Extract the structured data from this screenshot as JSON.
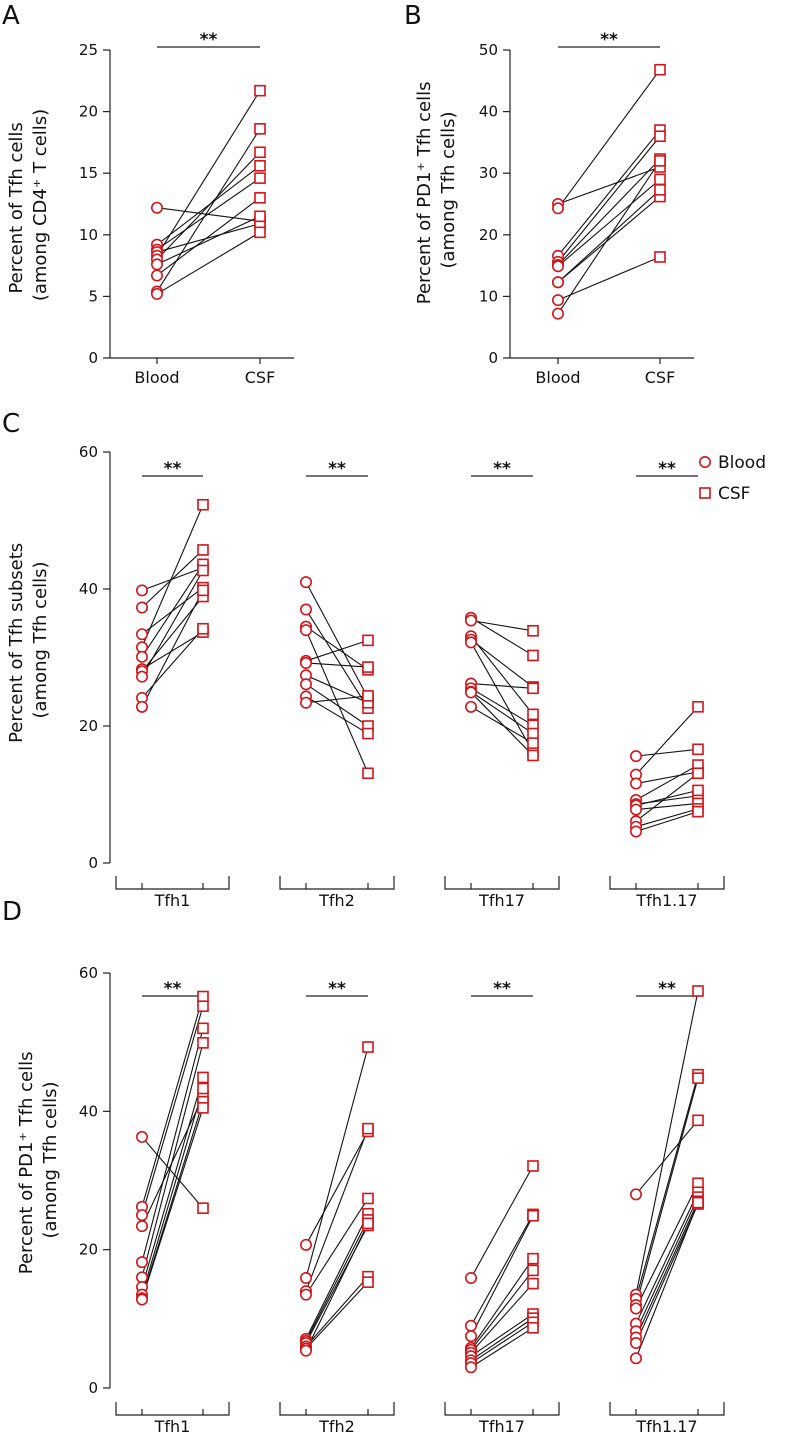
{
  "chart_data": [
    {
      "panel": "A",
      "type": "scatter",
      "paired": true,
      "ylabel": [
        "Percent of Tfh cells",
        "(among CD4⁺ T cells)"
      ],
      "categories": [
        "Blood",
        "CSF"
      ],
      "yticks": [
        0,
        5,
        10,
        15,
        20,
        25
      ],
      "ylim": [
        0,
        25
      ],
      "significance": "**",
      "pairs": [
        [
          12.2,
          11.1
        ],
        [
          9.2,
          15.6
        ],
        [
          8.8,
          14.6
        ],
        [
          8.6,
          10.9
        ],
        [
          8.3,
          21.7
        ],
        [
          8.0,
          16.7
        ],
        [
          7.6,
          11.5
        ],
        [
          6.7,
          13.0
        ],
        [
          5.4,
          18.6
        ],
        [
          5.2,
          10.2
        ]
      ]
    },
    {
      "panel": "B",
      "type": "scatter",
      "paired": true,
      "ylabel": [
        "Percent of PD1⁺ Tfh cells",
        "(among Tfh cells)"
      ],
      "categories": [
        "Blood",
        "CSF"
      ],
      "yticks": [
        0,
        10,
        20,
        30,
        40,
        50
      ],
      "ylim": [
        0,
        50
      ],
      "significance": "**",
      "pairs": [
        [
          25.0,
          31.0
        ],
        [
          24.3,
          46.8
        ],
        [
          16.6,
          37.0
        ],
        [
          15.6,
          36.0
        ],
        [
          15.1,
          32.3
        ],
        [
          14.9,
          29.0
        ],
        [
          12.3,
          26.2
        ],
        [
          9.4,
          16.4
        ],
        [
          7.2,
          32.0
        ],
        [
          12.3,
          27.3
        ]
      ]
    },
    {
      "panel": "C",
      "type": "scatter",
      "paired": true,
      "ylabel": [
        "Percent of Tfh subsets",
        "(among Tfh cells)"
      ],
      "yticks": [
        0,
        20,
        40,
        60
      ],
      "ylim": [
        0,
        60
      ],
      "legend": [
        {
          "marker": "circle",
          "label": "Blood"
        },
        {
          "marker": "square",
          "label": "CSF"
        }
      ],
      "groups": [
        {
          "label": "Tfh1",
          "significance": "**",
          "pairs": [
            [
              39.8,
              43.1
            ],
            [
              37.3,
              45.7
            ],
            [
              33.4,
              40.2
            ],
            [
              31.5,
              52.3
            ],
            [
              30.1,
              43.6
            ],
            [
              28.3,
              33.7
            ],
            [
              28.0,
              38.9
            ],
            [
              27.2,
              42.7
            ],
            [
              24.1,
              34.2
            ],
            [
              22.8,
              39.8
            ]
          ]
        },
        {
          "label": "Tfh2",
          "significance": "**",
          "pairs": [
            [
              41.0,
              24.1
            ],
            [
              37.0,
              22.6
            ],
            [
              34.5,
              28.2
            ],
            [
              34.0,
              13.1
            ],
            [
              29.5,
              32.5
            ],
            [
              29.2,
              28.6
            ],
            [
              27.4,
              23.4
            ],
            [
              26.1,
              20.0
            ],
            [
              24.3,
              18.9
            ],
            [
              23.4,
              24.4
            ]
          ]
        },
        {
          "label": "Tfh17",
          "significance": "**",
          "pairs": [
            [
              35.8,
              30.3
            ],
            [
              35.4,
              33.9
            ],
            [
              33.1,
              21.7
            ],
            [
              32.6,
              25.7
            ],
            [
              32.2,
              16.2
            ],
            [
              26.2,
              25.5
            ],
            [
              25.5,
              20.1
            ],
            [
              25.0,
              18.9
            ],
            [
              24.9,
              15.7
            ],
            [
              22.8,
              17.5
            ]
          ]
        },
        {
          "label": "Tfh1.17",
          "significance": "**",
          "pairs": [
            [
              15.6,
              16.6
            ],
            [
              12.9,
              22.8
            ],
            [
              11.6,
              13.3
            ],
            [
              9.2,
              14.3
            ],
            [
              8.6,
              9.8
            ],
            [
              8.4,
              10.6
            ],
            [
              7.8,
              8.7
            ],
            [
              6.1,
              13.1
            ],
            [
              5.3,
              7.9
            ],
            [
              4.6,
              7.5
            ]
          ]
        }
      ]
    },
    {
      "panel": "D",
      "type": "scatter",
      "paired": true,
      "ylabel": [
        "Percent of PD1⁺ Tfh cells",
        "(among Tfh cells)"
      ],
      "yticks": [
        0,
        20,
        40,
        60
      ],
      "ylim": [
        0,
        60
      ],
      "groups": [
        {
          "label": "Tfh1",
          "significance": "**",
          "pairs": [
            [
              36.3,
              26.0
            ],
            [
              26.2,
              56.6
            ],
            [
              25.0,
              55.2
            ],
            [
              23.4,
              42.1
            ],
            [
              18.2,
              52.0
            ],
            [
              16.0,
              49.9
            ],
            [
              14.6,
              44.9
            ],
            [
              13.5,
              43.3
            ],
            [
              13.0,
              41.4
            ],
            [
              12.8,
              40.5
            ]
          ]
        },
        {
          "label": "Tfh2",
          "significance": "**",
          "pairs": [
            [
              20.7,
              37.1
            ],
            [
              15.9,
              49.3
            ],
            [
              14.0,
              37.5
            ],
            [
              13.5,
              27.4
            ],
            [
              7.1,
              25.2
            ],
            [
              6.8,
              24.3
            ],
            [
              6.5,
              23.5
            ],
            [
              6.0,
              16.1
            ],
            [
              5.7,
              15.3
            ],
            [
              5.4,
              23.8
            ]
          ]
        },
        {
          "label": "Tfh17",
          "significance": "**",
          "pairs": [
            [
              15.9,
              32.1
            ],
            [
              9.0,
              25.1
            ],
            [
              7.5,
              24.9
            ],
            [
              5.8,
              18.7
            ],
            [
              5.5,
              17.0
            ],
            [
              5.1,
              15.1
            ],
            [
              4.6,
              10.7
            ],
            [
              4.0,
              10.1
            ],
            [
              3.6,
              9.5
            ],
            [
              3.0,
              8.7
            ]
          ]
        },
        {
          "label": "Tfh1.17",
          "significance": "**",
          "pairs": [
            [
              28.0,
              38.7
            ],
            [
              13.5,
              57.4
            ],
            [
              12.9,
              45.3
            ],
            [
              12.0,
              44.8
            ],
            [
              11.5,
              29.6
            ],
            [
              9.3,
              28.3
            ],
            [
              8.2,
              27.6
            ],
            [
              7.3,
              27.0
            ],
            [
              6.5,
              26.6
            ],
            [
              4.3,
              26.8
            ]
          ]
        }
      ]
    }
  ]
}
